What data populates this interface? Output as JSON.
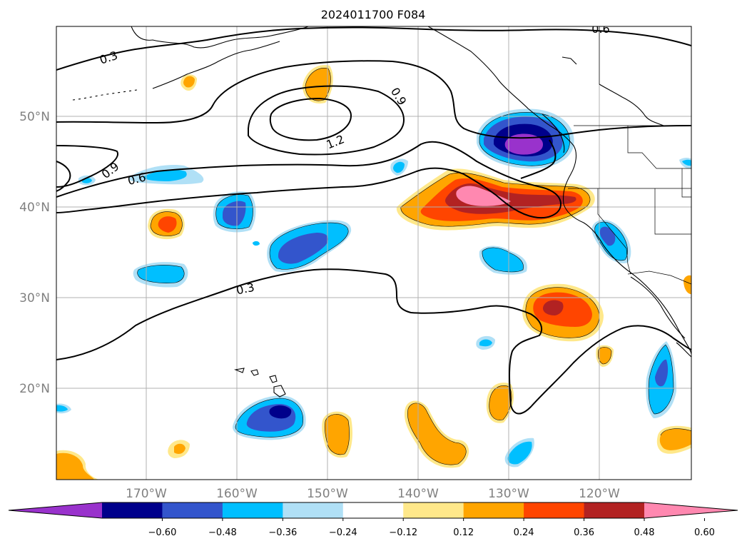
{
  "title": "2024011700 F084",
  "lat_labels": [
    "50°N",
    "40°N",
    "30°N",
    "20°N"
  ],
  "lon_labels": [
    "170°W",
    "160°W",
    "150°W",
    "140°W",
    "130°W",
    "120°W"
  ],
  "contour_labels": [
    "0.3",
    "0.6",
    "0.9",
    "0.6",
    "0.9",
    "1.2",
    "0.3"
  ],
  "colorbar": {
    "ticks": [
      "−0.60",
      "−0.48",
      "−0.36",
      "−0.24",
      "−0.12",
      "0.12",
      "0.24",
      "0.36",
      "0.48",
      "0.60"
    ],
    "colors": [
      "#9932cc",
      "#00008b",
      "#3355cc",
      "#00bfff",
      "#b0e0f6",
      "#ffffff",
      "#ffe88a",
      "#ffa500",
      "#ff4500",
      "#b22222",
      "#ff88b0"
    ]
  },
  "shading_colors": {
    "pos1": "#ffe88a",
    "pos2": "#ffa500",
    "pos3": "#ff4500",
    "pos4": "#b22222",
    "pos5": "#ff88b0",
    "neg1": "#b0e0f6",
    "neg2": "#00bfff",
    "neg3": "#3355cc",
    "neg4": "#00008b",
    "neg5": "#9932cc"
  }
}
